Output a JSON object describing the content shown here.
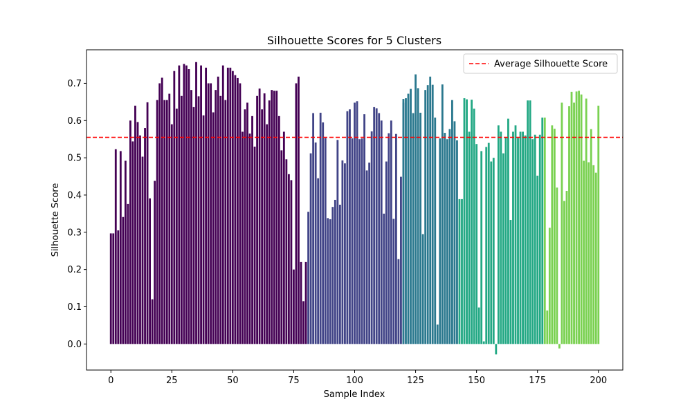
{
  "chart_data": {
    "type": "bar",
    "title": "Silhouette Scores for 5 Clusters",
    "xlabel": "Sample Index",
    "ylabel": "Silhouette Score",
    "xlim": [
      -10,
      210
    ],
    "ylim": [
      -0.07,
      0.79
    ],
    "xticks": [
      0,
      25,
      50,
      75,
      100,
      125,
      150,
      175,
      200
    ],
    "yticks": [
      0.0,
      0.1,
      0.2,
      0.3,
      0.4,
      0.5,
      0.6,
      0.7
    ],
    "average_line": {
      "label": "Average Silhouette Score",
      "value": 0.555,
      "color": "#ff0000"
    },
    "legend_position": "top-right",
    "grid": false,
    "clusters": [
      {
        "color": "#440154",
        "start": 0,
        "values": [
          0.297,
          0.297,
          0.523,
          0.305,
          0.518,
          0.341,
          0.492,
          0.376,
          0.6,
          0.544,
          0.64,
          0.596,
          0.56,
          0.503,
          0.58,
          0.649,
          0.391,
          0.12,
          0.438,
          0.655,
          0.7,
          0.715,
          0.655,
          0.655,
          0.672,
          0.59,
          0.733,
          0.632,
          0.748,
          0.666,
          0.752,
          0.748,
          0.738,
          0.682,
          0.636,
          0.757,
          0.665,
          0.748,
          0.614,
          0.742,
          0.7,
          0.7,
          0.622,
          0.682,
          0.718,
          0.666,
          0.748,
          0.655,
          0.742,
          0.742,
          0.733,
          0.722,
          0.714,
          0.7,
          0.57,
          0.63,
          0.648,
          0.565,
          0.612,
          0.53,
          0.666,
          0.686,
          0.63,
          0.673,
          0.59,
          0.654,
          0.682,
          0.68,
          0.68,
          0.612,
          0.52,
          0.57,
          0.496,
          0.456,
          0.44,
          0.2,
          0.7,
          0.718,
          0.22,
          0.115,
          0.22
        ]
      },
      {
        "color": "#414487",
        "start": 81,
        "values": [
          0.355,
          0.512,
          0.62,
          0.541,
          0.445,
          0.621,
          0.595,
          0.553,
          0.338,
          0.335,
          0.368,
          0.387,
          0.548,
          0.374,
          0.493,
          0.485,
          0.625,
          0.63,
          0.552,
          0.648,
          0.652,
          0.55,
          0.552,
          0.617,
          0.466,
          0.487,
          0.571,
          0.636,
          0.633,
          0.62,
          0.6,
          0.35,
          0.49,
          0.566,
          0.6,
          0.336,
          0.564,
          0.228,
          0.449,
          0.648
        ]
      },
      {
        "color": "#2a788e",
        "start": 120,
        "values": [
          0.658,
          0.66,
          0.672,
          0.685,
          0.62,
          0.724,
          0.687,
          0.621,
          0.295,
          0.682,
          0.695,
          0.718,
          0.696,
          0.608,
          0.052,
          0.552,
          0.697,
          0.567,
          0.55,
          0.577,
          0.655,
          0.598,
          0.547
        ]
      },
      {
        "color": "#22a884",
        "start": 143,
        "values": [
          0.389,
          0.389,
          0.66,
          0.657,
          0.57,
          0.656,
          0.632,
          0.537,
          0.098,
          0.518,
          0.007,
          0.529,
          0.54,
          0.49,
          0.5,
          -0.028,
          0.587,
          0.57,
          0.512,
          0.556,
          0.605,
          0.333,
          0.57,
          0.587,
          0.553,
          0.57,
          0.57,
          0.56,
          0.654,
          0.654,
          0.55,
          0.562,
          0.452,
          0.562,
          0.608
        ]
      },
      {
        "color": "#7ad151",
        "start": 178,
        "values": [
          0.608,
          0.09,
          0.312,
          0.587,
          0.578,
          0.42,
          -0.012,
          0.648,
          0.384,
          0.411,
          0.639,
          0.677,
          0.648,
          0.678,
          0.68,
          0.67,
          0.492,
          0.659,
          0.488,
          0.577,
          0.48,
          0.46,
          0.64
        ]
      }
    ]
  }
}
